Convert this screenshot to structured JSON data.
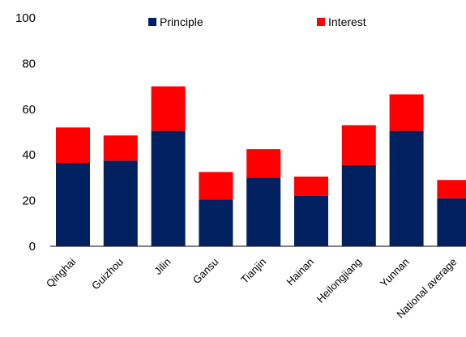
{
  "chart_data": {
    "type": "bar",
    "stacked": true,
    "categories": [
      "Qinghai",
      "Guizhou",
      "Jilin",
      "Gansu",
      "Tianjin",
      "Hainan",
      "Heilongjiang",
      "Yunnan",
      "National average"
    ],
    "series": [
      {
        "name": "Principle",
        "color": "#002060",
        "values": [
          36.5,
          37.5,
          50.5,
          20.5,
          30,
          22,
          35.5,
          50.5,
          21
        ]
      },
      {
        "name": "Interest",
        "color": "#ff0000",
        "values": [
          15.5,
          11,
          19.5,
          12,
          12.5,
          8.5,
          17.5,
          16,
          8
        ]
      }
    ],
    "title": "",
    "xlabel": "",
    "ylabel": "",
    "ylim": [
      0,
      100
    ],
    "yticks": [
      0,
      20,
      40,
      60,
      80,
      100
    ],
    "grid": false,
    "legend": "top-center"
  }
}
